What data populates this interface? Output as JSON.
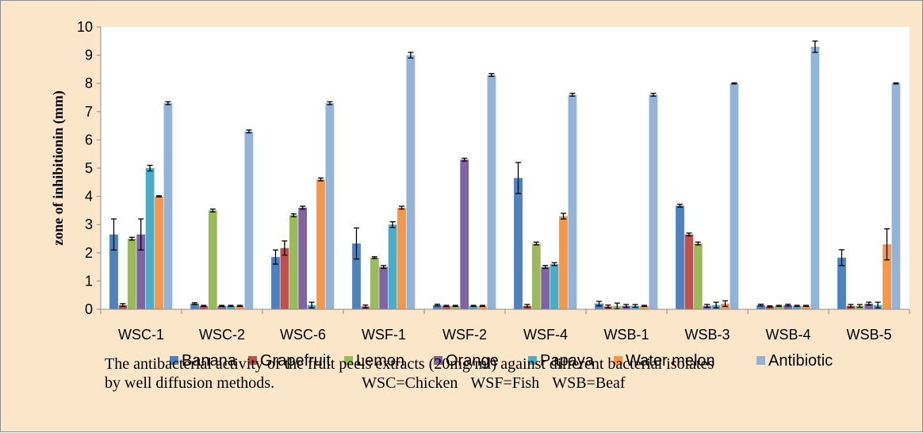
{
  "chart_data": {
    "type": "bar",
    "categories": [
      "WSC-1",
      "WSC-2",
      "WSC-6",
      "WSF-1",
      "WSF-2",
      "WSF-4",
      "WSB-1",
      "WSB-3",
      "WSB-4",
      "WSB-5"
    ],
    "series": [
      {
        "name": "Banana",
        "color": "#4f81bd",
        "values": [
          2.65,
          0.2,
          1.85,
          2.33,
          0.15,
          4.65,
          0.2,
          3.67,
          0.15,
          1.83
        ],
        "errors": [
          0.55,
          0.03,
          0.25,
          0.55,
          0.03,
          0.55,
          0.08,
          0.05,
          0.03,
          0.28
        ]
      },
      {
        "name": "Grapefruit",
        "color": "#c0504d",
        "values": [
          0.15,
          0.12,
          2.17,
          0.1,
          0.12,
          0.12,
          0.1,
          2.65,
          0.1,
          0.12
        ],
        "errors": [
          0.05,
          0.02,
          0.25,
          0.05,
          0.02,
          0.05,
          0.05,
          0.05,
          0.02,
          0.05
        ]
      },
      {
        "name": "Lemon",
        "color": "#9bbb59",
        "values": [
          2.5,
          3.5,
          3.33,
          1.83,
          0.12,
          2.33,
          0.12,
          2.33,
          0.12,
          0.12
        ],
        "errors": [
          0.05,
          0.05,
          0.05,
          0.03,
          0.02,
          0.05,
          0.1,
          0.05,
          0.02,
          0.05
        ]
      },
      {
        "name": "Orange",
        "color": "#8064a2",
        "values": [
          2.65,
          0.12,
          3.6,
          1.5,
          5.3,
          1.5,
          0.12,
          0.12,
          0.15,
          0.2
        ],
        "errors": [
          0.55,
          0.02,
          0.05,
          0.05,
          0.05,
          0.05,
          0.05,
          0.05,
          0.03,
          0.05
        ]
      },
      {
        "name": "Papaya",
        "color": "#4bacc6",
        "values": [
          5.0,
          0.12,
          0.15,
          3.0,
          0.12,
          1.6,
          0.12,
          0.15,
          0.12,
          0.15
        ],
        "errors": [
          0.1,
          0.02,
          0.1,
          0.1,
          0.02,
          0.05,
          0.05,
          0.1,
          0.02,
          0.1
        ]
      },
      {
        "name": "Water melon",
        "color": "#f79646",
        "values": [
          4.0,
          0.12,
          4.6,
          3.6,
          0.12,
          3.3,
          0.12,
          0.2,
          0.12,
          2.3
        ],
        "errors": [
          0.02,
          0.02,
          0.05,
          0.05,
          0.02,
          0.1,
          0.02,
          0.1,
          0.02,
          0.55
        ]
      },
      {
        "name": "Antibiotic",
        "color": "#95b3d7",
        "values": [
          7.3,
          6.3,
          7.3,
          9.0,
          8.3,
          7.6,
          7.6,
          8.0,
          9.3,
          8.0
        ],
        "errors": [
          0.05,
          0.05,
          0.05,
          0.1,
          0.05,
          0.05,
          0.05,
          0.02,
          0.2,
          0.02
        ]
      }
    ],
    "ylabel": "zone of inhibitionin (mm)",
    "xlabel": "",
    "ylim": [
      0,
      10
    ],
    "yticks": [
      "0",
      "1",
      "2",
      "3",
      "4",
      "5",
      "6",
      "7",
      "8",
      "9",
      "10"
    ],
    "legend_position": "bottom",
    "grid": false
  },
  "caption": {
    "line1": "The antibacterial activity of the fruit peels extracts (20mg/ml) against different bacterial isolates",
    "line2_start": "by well diffusion methods.",
    "key1": "WSC=Chicken",
    "key2": "WSF=Fish",
    "key3": "WSB=Beaf"
  },
  "colors": {
    "background": "#fbe6c9",
    "plot_background": "#ffffff",
    "frame": "#8c8c8c"
  }
}
